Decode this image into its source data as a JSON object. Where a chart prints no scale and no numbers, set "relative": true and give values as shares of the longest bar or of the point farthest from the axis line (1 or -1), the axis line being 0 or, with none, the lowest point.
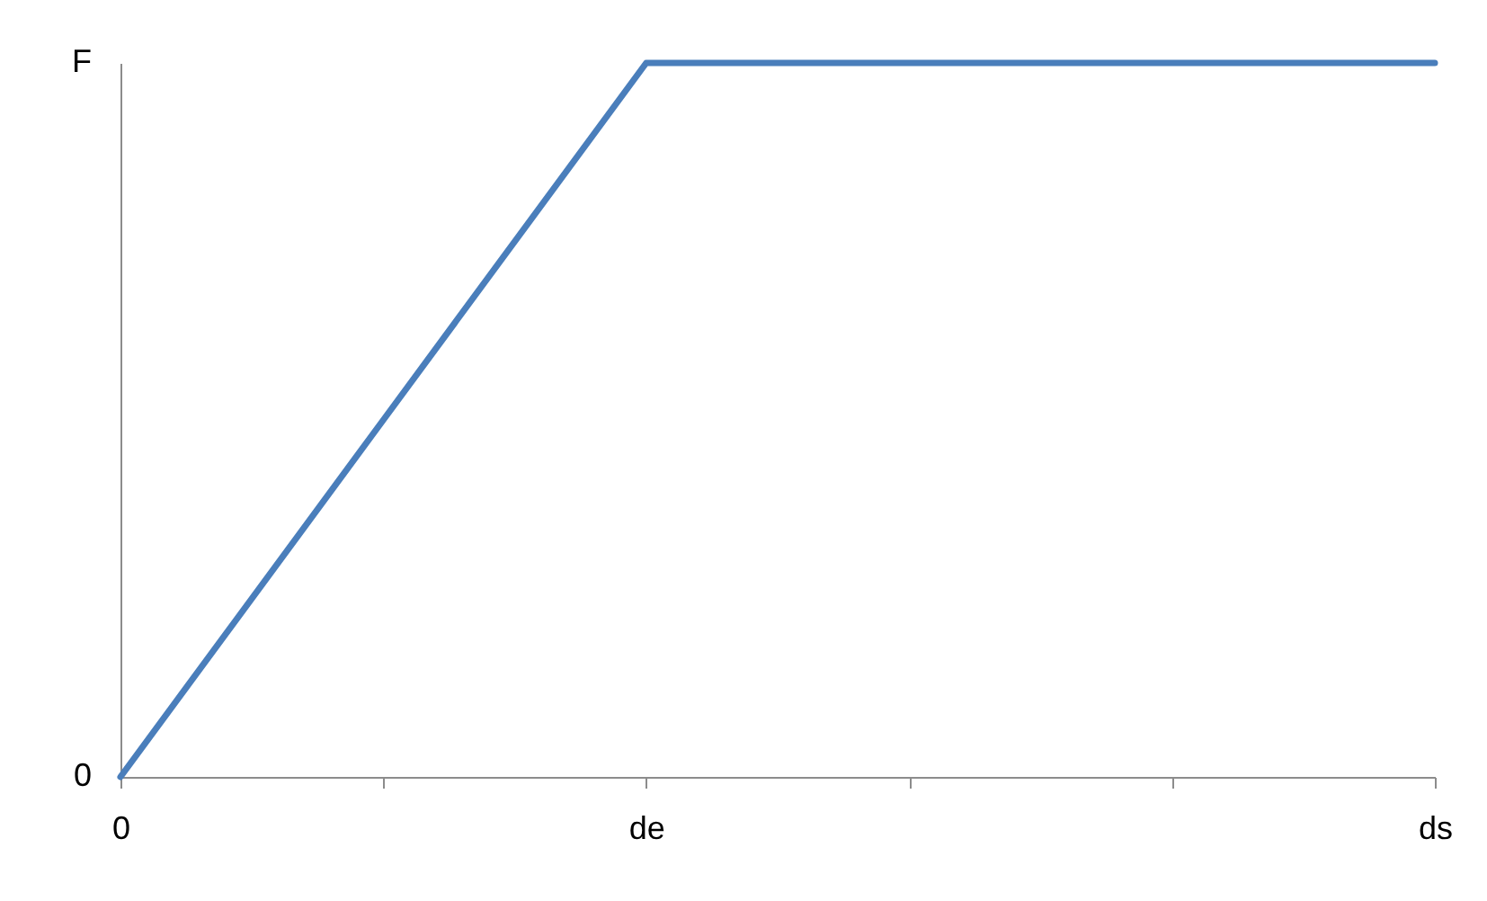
{
  "chart_data": {
    "type": "line",
    "categories": [
      "0",
      null,
      "de",
      null,
      null,
      "ds"
    ],
    "relative": true,
    "annotations": [
      "F",
      "0"
    ],
    "grid": false,
    "marker": "none",
    "line_style": "solid",
    "series": [
      {
        "color": "#4a7ebb",
        "values": [
          0,
          0.5,
          1,
          1,
          1,
          1
        ]
      }
    ]
  }
}
